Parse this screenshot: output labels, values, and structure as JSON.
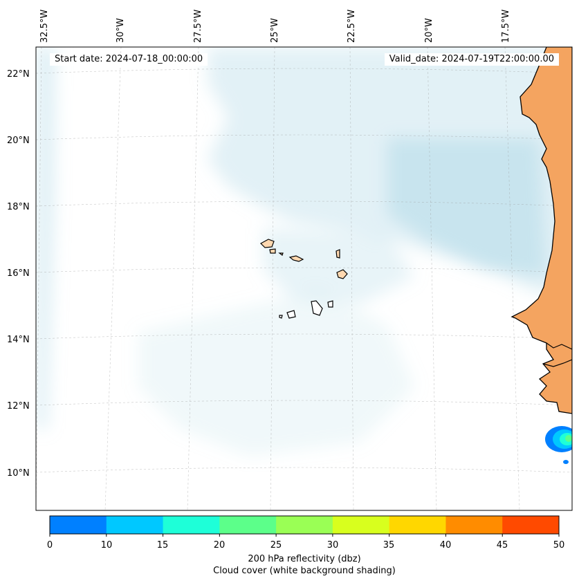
{
  "header": {
    "start_date": "Start date: 2024-07-18_00:00:00",
    "valid_date": "Valid_date: 2024-07-19T22:00:00.00"
  },
  "axes": {
    "longitude_labels": [
      "32.5°W",
      "30°W",
      "27.5°W",
      "25°W",
      "22.5°W",
      "20°W",
      "17.5°W"
    ],
    "latitude_labels": [
      "22°N",
      "20°N",
      "18°N",
      "16°N",
      "14°N",
      "12°N",
      "10°N"
    ]
  },
  "colorbar": {
    "colors": [
      "#0080ff",
      "#00c8ff",
      "#1effd8",
      "#5cff8a",
      "#9aff55",
      "#d8ff1e",
      "#ffd700",
      "#ff8c00",
      "#ff4a00"
    ],
    "tick_labels": [
      "0",
      "10",
      "15",
      "20",
      "25",
      "30",
      "35",
      "40",
      "45",
      "50"
    ],
    "label_line1": "200 hPa reflectivity (dbz)",
    "label_line2": "Cloud cover (white background shading)"
  },
  "map": {
    "land_color": "#f4a460",
    "cloud_color": "#add8e6",
    "coastline_color": "#000000",
    "gridlines": true
  }
}
